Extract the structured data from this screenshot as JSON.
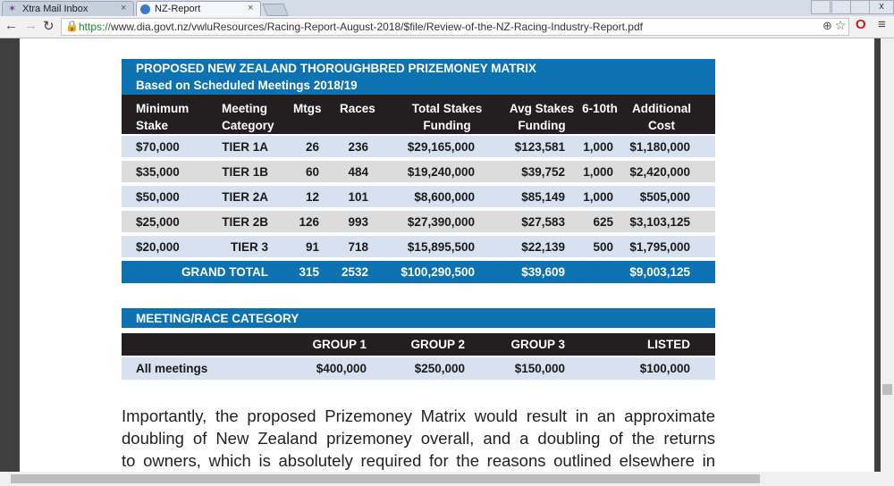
{
  "browser": {
    "tabs": [
      "Xtra Mail Inbox",
      "NZ-Report"
    ],
    "url_scheme": "https://",
    "url_rest": "www.dia.govt.nz/vwluResources/Racing-Report-August-2018/$file/Review-of-the-NZ-Racing-Industry-Report.pdf"
  },
  "matrix": {
    "title": "PROPOSED NEW ZEALAND THOROUGHBRED PRIZEMONEY MATRIX",
    "subtitle": "Based on Scheduled Meetings 2018/19",
    "headers": [
      [
        "Minimum",
        "Stake"
      ],
      [
        "Meeting",
        "Category"
      ],
      [
        "Mtgs"
      ],
      [
        "Races"
      ],
      [
        "Total Stakes",
        "Funding"
      ],
      [
        "Avg Stakes",
        "Funding"
      ],
      [
        "6-10th"
      ],
      [
        "Additional",
        "Cost"
      ]
    ],
    "rows": [
      [
        "$70,000",
        "TIER 1A",
        "26",
        "236",
        "$29,165,000",
        "$123,581",
        "1,000",
        "$1,180,000"
      ],
      [
        "$35,000",
        "TIER 1B",
        "60",
        "484",
        "$19,240,000",
        "$39,752",
        "1,000",
        "$2,420,000"
      ],
      [
        "$50,000",
        "TIER 2A",
        "12",
        "101",
        "$8,600,000",
        "$85,149",
        "1,000",
        "$505,000"
      ],
      [
        "$25,000",
        "TIER 2B",
        "126",
        "993",
        "$27,390,000",
        "$27,583",
        "625",
        "$3,103,125"
      ],
      [
        "$20,000",
        "TIER 3",
        "91",
        "718",
        "$15,895,500",
        "$22,139",
        "500",
        "$1,795,000"
      ]
    ],
    "total": {
      "label": "GRAND TOTAL",
      "mtgs": "315",
      "races": "2532",
      "funding": "$100,290,500",
      "avg": "$39,609",
      "additional": "$9,003,125"
    }
  },
  "category": {
    "title": "MEETING/RACE CATEGORY",
    "headers": [
      "GROUP 1",
      "GROUP 2",
      "GROUP 3",
      "LISTED"
    ],
    "row_label": "All meetings",
    "values": [
      "$400,000",
      "$250,000",
      "$150,000",
      "$100,000"
    ]
  },
  "paragraph": {
    "lines": [
      "Importantly, the proposed Prizemoney Matrix would result in an approximate",
      "doubling of New Zealand prizemoney overall, and a doubling of the returns",
      "to owners, which is absolutely required for the reasons outlined elsewhere in"
    ]
  }
}
